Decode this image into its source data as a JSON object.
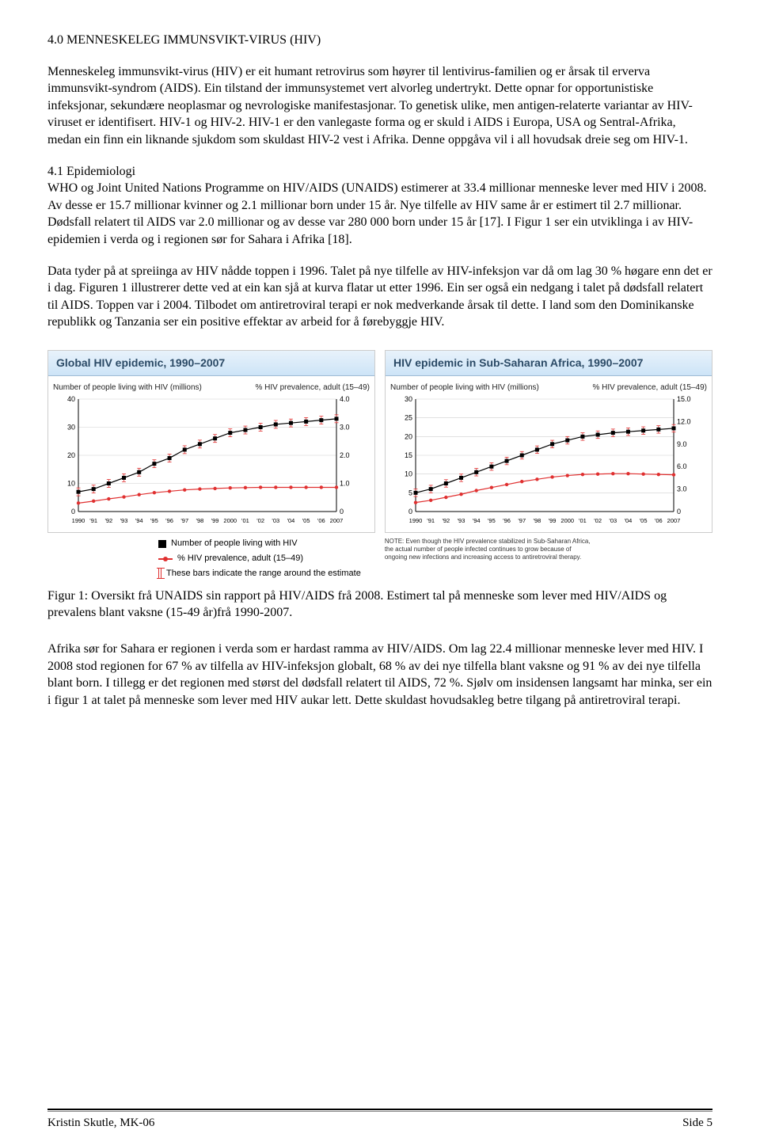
{
  "section": {
    "title": "4.0 MENNESKELEG IMMUNSVIKT-VIRUS (HIV)",
    "p1": "Menneskeleg immunsvikt-virus (HIV) er eit humant retrovirus som høyrer til lentivirus-familien og er årsak til erverva immunsvikt-syndrom (AIDS). Ein tilstand der immunsystemet vert alvorleg undertrykt. Dette opnar for opportunistiske infeksjonar, sekundære neoplasmar og nevrologiske manifestasjonar. To genetisk ulike, men antigen-relaterte variantar av HIV-viruset er identifisert. HIV-1 og HIV-2. HIV-1 er den vanlegaste forma og er skuld i AIDS i Europa, USA og Sentral-Afrika, medan ein finn ein liknande sjukdom som skuldast HIV-2 vest i Afrika. Denne oppgåva vil i all hovudsak dreie seg om HIV-1.",
    "sub1_title": "4.1 Epidemiologi",
    "p2": "WHO og Joint United Nations Programme on HIV/AIDS (UNAIDS) estimerer at 33.4 millionar menneske lever med HIV i 2008. Av desse er 15.7 millionar kvinner og 2.1 millionar born under 15 år. Nye tilfelle av HIV same år er estimert til 2.7 millionar. Dødsfall relatert til AIDS var 2.0 millionar og av desse var 280 000 born under 15 år [17]. I Figur 1 ser ein utviklinga i av HIV-epidemien i verda og i regionen sør for Sahara i Afrika [18].",
    "p3": "Data tyder på at spreiinga av HIV nådde toppen i 1996. Talet på nye tilfelle av HIV-infeksjon var då om lag 30 % høgare enn det er i dag. Figuren 1 illustrerer dette ved at ein kan sjå at kurva flatar ut etter 1996. Ein ser også ein nedgang i talet på dødsfall relatert til AIDS. Toppen var i 2004. Tilbodet om antiretroviral terapi er nok medverkande årsak til dette. I land som den Dominikanske republikk og Tanzania ser ein positive effektar av arbeid for å førebyggje HIV.",
    "fig_caption": "Figur 1: Oversikt frå UNAIDS sin rapport på HIV/AIDS frå 2008. Estimert tal på menneske som lever med HIV/AIDS og prevalens blant vaksne (15-49 år)frå 1990-2007.",
    "p4": "Afrika sør for Sahara er regionen i verda som er hardast ramma av HIV/AIDS. Om lag 22.4 millionar menneske lever med HIV. I 2008 stod regionen for 67 % av tilfella av HIV-infeksjon globalt, 68 % av dei nye tilfella blant vaksne og 91 % av dei nye tilfella blant born. I tillegg er det regionen med størst del dødsfall relatert til AIDS, 72 %. Sjølv om insidensen langsamt har minka, ser ein i figur 1 at talet på menneske som lever med HIV aukar lett. Dette skuldast hovudsakleg betre tilgang på antiretroviral terapi."
  },
  "chart_left": {
    "title": "Global HIV epidemic, 1990–2007",
    "left_axis_label": "Number of people living with HIV (millions)",
    "right_axis_label": "% HIV prevalence, adult (15–49)",
    "left_ticks": [
      0,
      10,
      20,
      30,
      40
    ],
    "right_ticks": [
      "0",
      "1.0",
      "2.0",
      "3.0",
      "4.0"
    ],
    "x_ticks": [
      "1990",
      "'91",
      "'92",
      "'93",
      "'94",
      "'95",
      "'96",
      "'97",
      "'98",
      "'99",
      "2000",
      "'01",
      "'02",
      "'03",
      "'04",
      "'05",
      "'06",
      "2007"
    ],
    "people_values": [
      7,
      8,
      10,
      12,
      14,
      17,
      19,
      22,
      24,
      26,
      28,
      29,
      30,
      31,
      31.5,
      32,
      32.5,
      33
    ],
    "prev_values": [
      0.3,
      0.37,
      0.45,
      0.52,
      0.6,
      0.67,
      0.72,
      0.77,
      0.8,
      0.82,
      0.84,
      0.85,
      0.86,
      0.86,
      0.86,
      0.86,
      0.86,
      0.86
    ],
    "err": 1.4,
    "colors": {
      "bg": "#ffffff",
      "grid": "#cfcfcf",
      "people": "#000000",
      "prev": "#e03030"
    },
    "ylim_left": [
      0,
      40
    ],
    "ylim_right": [
      0,
      4.0
    ]
  },
  "chart_right": {
    "title": "HIV epidemic in Sub-Saharan Africa, 1990–2007",
    "left_axis_label": "Number of people living with HIV (millions)",
    "right_axis_label": "% HIV prevalence, adult (15–49)",
    "left_ticks": [
      0,
      5,
      10,
      15,
      20,
      25,
      30
    ],
    "right_ticks": [
      "0",
      "3.0",
      "6.0",
      "9.0",
      "12.0",
      "15.0"
    ],
    "x_ticks": [
      "1990",
      "'91",
      "'92",
      "'93",
      "'94",
      "'95",
      "'96",
      "'97",
      "'98",
      "'99",
      "2000",
      "'01",
      "'02",
      "'03",
      "'04",
      "'05",
      "'06",
      "2007"
    ],
    "people_values": [
      5,
      6,
      7.5,
      9,
      10.5,
      12,
      13.5,
      15,
      16.5,
      18,
      19,
      20,
      20.5,
      21,
      21.3,
      21.6,
      21.9,
      22.2
    ],
    "prev_values": [
      1.2,
      1.5,
      1.9,
      2.3,
      2.8,
      3.2,
      3.6,
      4.0,
      4.3,
      4.6,
      4.8,
      4.95,
      5.0,
      5.05,
      5.05,
      5.0,
      4.95,
      4.9
    ],
    "err": 1.0,
    "colors": {
      "bg": "#ffffff",
      "grid": "#cfcfcf",
      "people": "#000000",
      "prev": "#e03030"
    },
    "ylim_left": [
      0,
      30
    ],
    "ylim_right": [
      0,
      15.0
    ]
  },
  "legend": {
    "item1": "Number of people living with HIV",
    "item2": "% HIV prevalence, adult (15–49)",
    "item3": "These bars indicate the range around the estimate",
    "note": "NOTE: Even though the HIV prevalence stabilized in Sub-Saharan Africa, the actual number of people infected continues to grow because of ongoing new infections and increasing access to antiretroviral therapy."
  },
  "footer": {
    "left": "Kristin Skutle, MK-06",
    "right": "Side 5"
  }
}
